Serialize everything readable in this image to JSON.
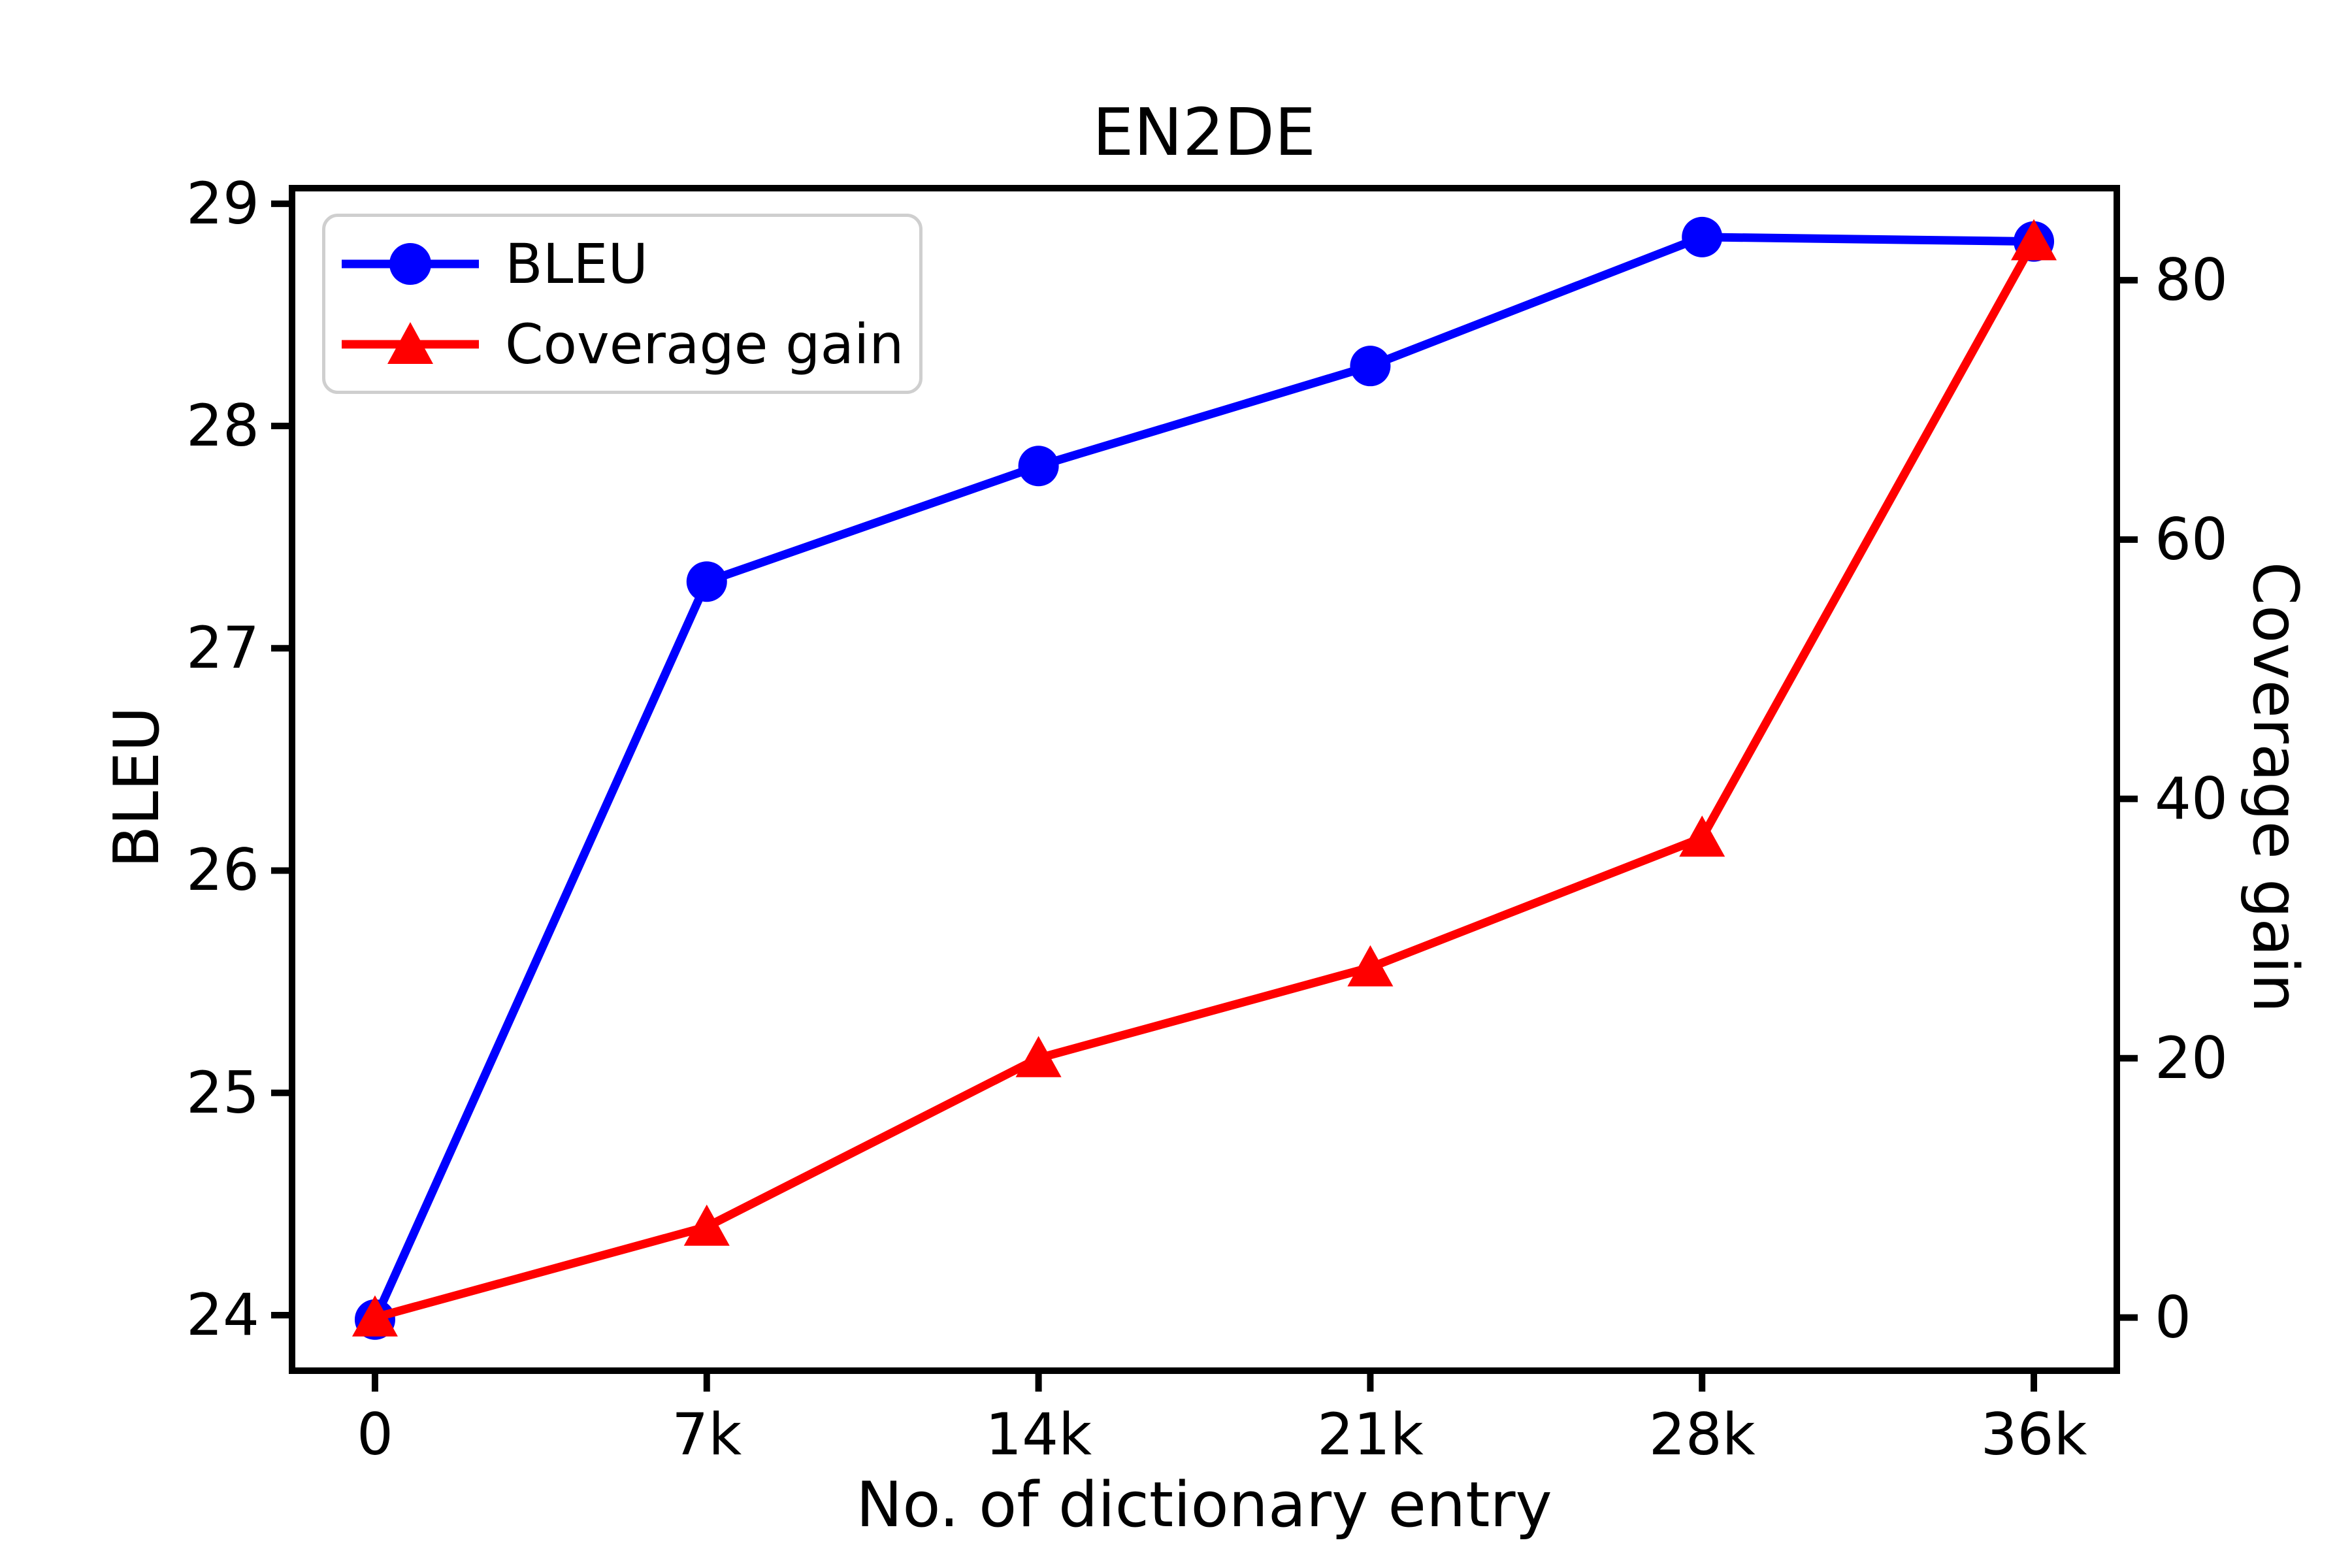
{
  "title": "EN2DE",
  "axes": {
    "x_label": "No. of dictionary entry",
    "y_left_label": "BLEU",
    "y_right_label": "Coverage gain",
    "x_tick_labels": [
      "0",
      "7k",
      "14k",
      "21k",
      "28k",
      "36k"
    ],
    "y_left_tick_labels": [
      "24",
      "25",
      "26",
      "27",
      "28",
      "29"
    ],
    "y_right_tick_labels": [
      "0",
      "20",
      "40",
      "60",
      "80"
    ]
  },
  "legend": {
    "entries": [
      {
        "label": "BLEU",
        "color": "#0000ff",
        "marker": "circle"
      },
      {
        "label": "Coverage gain",
        "color": "#ff0000",
        "marker": "triangle"
      }
    ]
  },
  "colors": {
    "bleu_series": "#0000ff",
    "coverage_series": "#ff0000",
    "axis": "#000000",
    "legend_border": "#cfcfcf"
  },
  "chart_data": {
    "type": "line",
    "title": "EN2DE",
    "xlabel": "No. of dictionary entry",
    "ylabel_left": "BLEU",
    "ylabel_right": "Coverage gain",
    "categories": [
      "0",
      "7k",
      "14k",
      "21k",
      "28k",
      "36k"
    ],
    "series": [
      {
        "name": "BLEU",
        "axis": "left",
        "color": "#0000ff",
        "marker": "circle",
        "values": [
          23.98,
          27.3,
          27.82,
          28.27,
          28.85,
          28.83
        ]
      },
      {
        "name": "Coverage gain",
        "axis": "right",
        "color": "#ff0000",
        "marker": "triangle",
        "values": [
          0,
          7,
          20,
          27,
          37,
          83
        ]
      }
    ],
    "y_left_ticks": [
      24,
      25,
      26,
      27,
      28,
      29
    ],
    "y_right_ticks": [
      0,
      20,
      40,
      60,
      80
    ],
    "ylim_left": [
      23.75,
      29.07
    ],
    "ylim_right": [
      -4.1,
      87.1
    ],
    "x_margin_fraction": 0.05,
    "legend_position": "upper left",
    "grid": false
  }
}
